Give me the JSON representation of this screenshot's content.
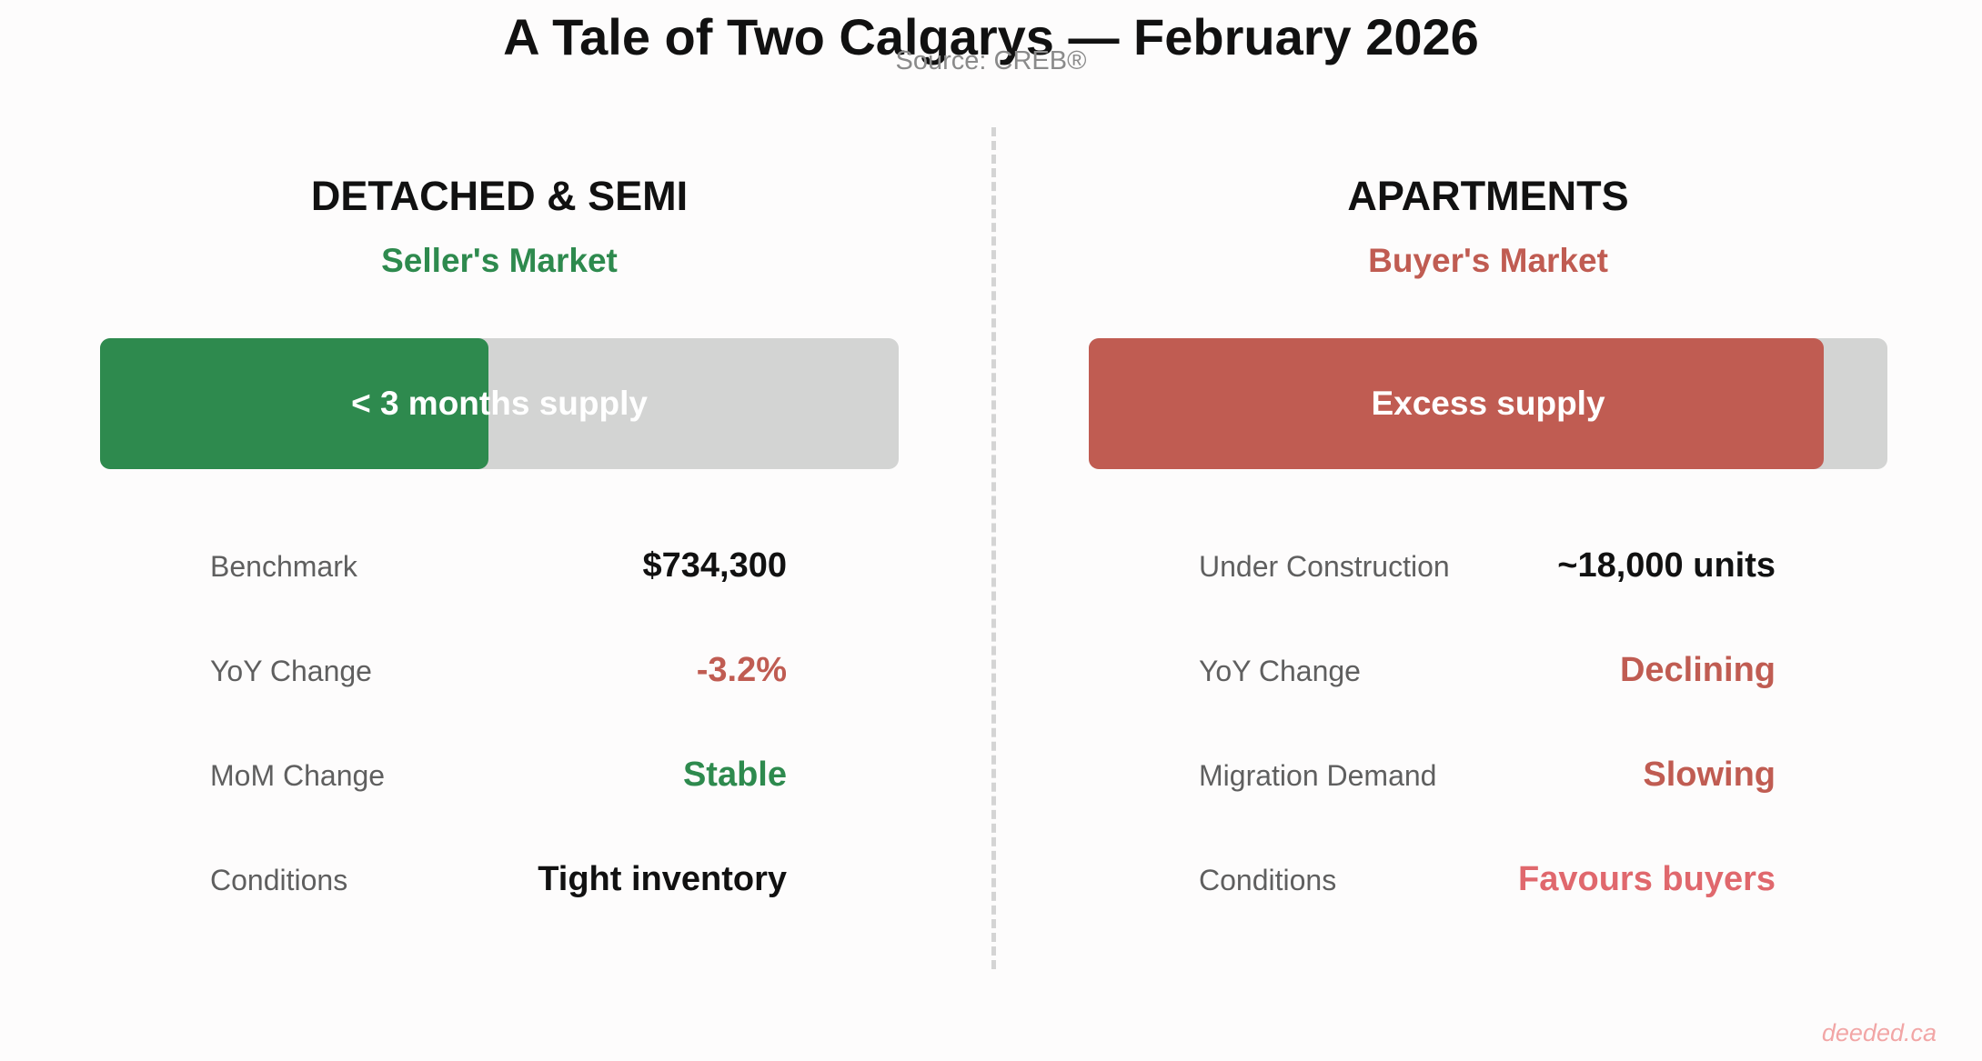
{
  "title": "A Tale of Two Calgarys — February 2026",
  "source": "Source: CREB®",
  "watermark": "deeded.ca",
  "colors": {
    "green": "#2e8a4e",
    "red": "#c05c52",
    "pink": "#e0686d",
    "dark": "#111111",
    "track": "#d3d4d3"
  },
  "chart_data": {
    "type": "bar",
    "title": "A Tale of Two Calgarys — February 2026",
    "segments": [
      {
        "name": "DETACHED & SEMI",
        "market": "Seller's Market",
        "market_color": "#2e8a4e",
        "bar": {
          "label": "< 3 months supply",
          "fill_fraction": 0.486,
          "color": "#2e8a4e"
        },
        "metrics": [
          {
            "label": "Benchmark",
            "value": "$734,300",
            "color": "#111111"
          },
          {
            "label": "YoY Change",
            "value": "-3.2%",
            "color": "#c05c52"
          },
          {
            "label": "MoM Change",
            "value": "Stable",
            "color": "#2e8a4e"
          },
          {
            "label": "Conditions",
            "value": "Tight inventory",
            "color": "#111111"
          }
        ]
      },
      {
        "name": "APARTMENTS",
        "market": "Buyer's Market",
        "market_color": "#c05c52",
        "bar": {
          "label": "Excess supply",
          "fill_fraction": 0.92,
          "color": "#c05c52"
        },
        "metrics": [
          {
            "label": "Under Construction",
            "value": "~18,000 units",
            "color": "#111111"
          },
          {
            "label": "YoY Change",
            "value": "Declining",
            "color": "#c05c52"
          },
          {
            "label": "Migration Demand",
            "value": "Slowing",
            "color": "#c05c52"
          },
          {
            "label": "Conditions",
            "value": "Favours buyers",
            "color": "#e0686d"
          }
        ]
      }
    ]
  }
}
